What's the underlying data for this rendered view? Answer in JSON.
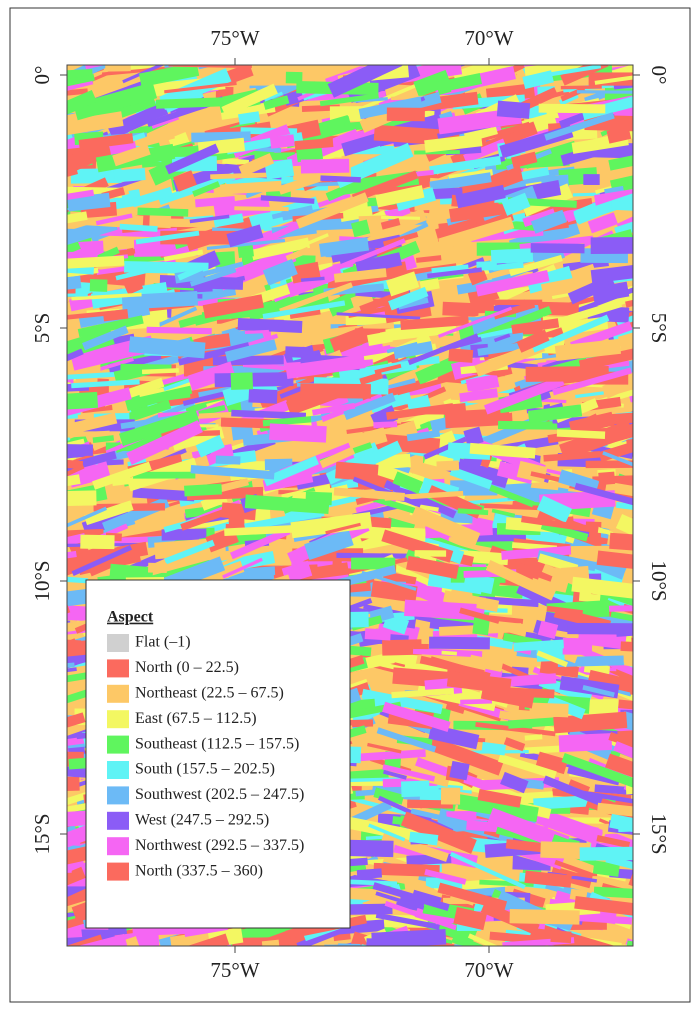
{
  "map": {
    "x_labels": [
      "75°W",
      "70°W"
    ],
    "y_labels": [
      "0°",
      "5°S",
      "10°S",
      "15°S"
    ],
    "legend": {
      "title": "Aspect",
      "items": [
        {
          "label": "Flat (–1)",
          "color": "#d0d0d0"
        },
        {
          "label": "North (0 – 22.5)",
          "color": "#fb6a5e"
        },
        {
          "label": "Northeast (22.5 – 67.5)",
          "color": "#fdc866"
        },
        {
          "label": "East (67.5 – 112.5)",
          "color": "#f3f762"
        },
        {
          "label": "Southeast (112.5 – 157.5)",
          "color": "#5ff55e"
        },
        {
          "label": "South (157.5 – 202.5)",
          "color": "#5ff3f5"
        },
        {
          "label": "Southwest (202.5 – 247.5)",
          "color": "#6cbaf6"
        },
        {
          "label": "West (247.5 – 292.5)",
          "color": "#8b5cf6"
        },
        {
          "label": "Northwest (292.5 – 337.5)",
          "color": "#f566f3"
        },
        {
          "label": "North (337.5 – 360)",
          "color": "#fb6a5e"
        }
      ]
    }
  }
}
